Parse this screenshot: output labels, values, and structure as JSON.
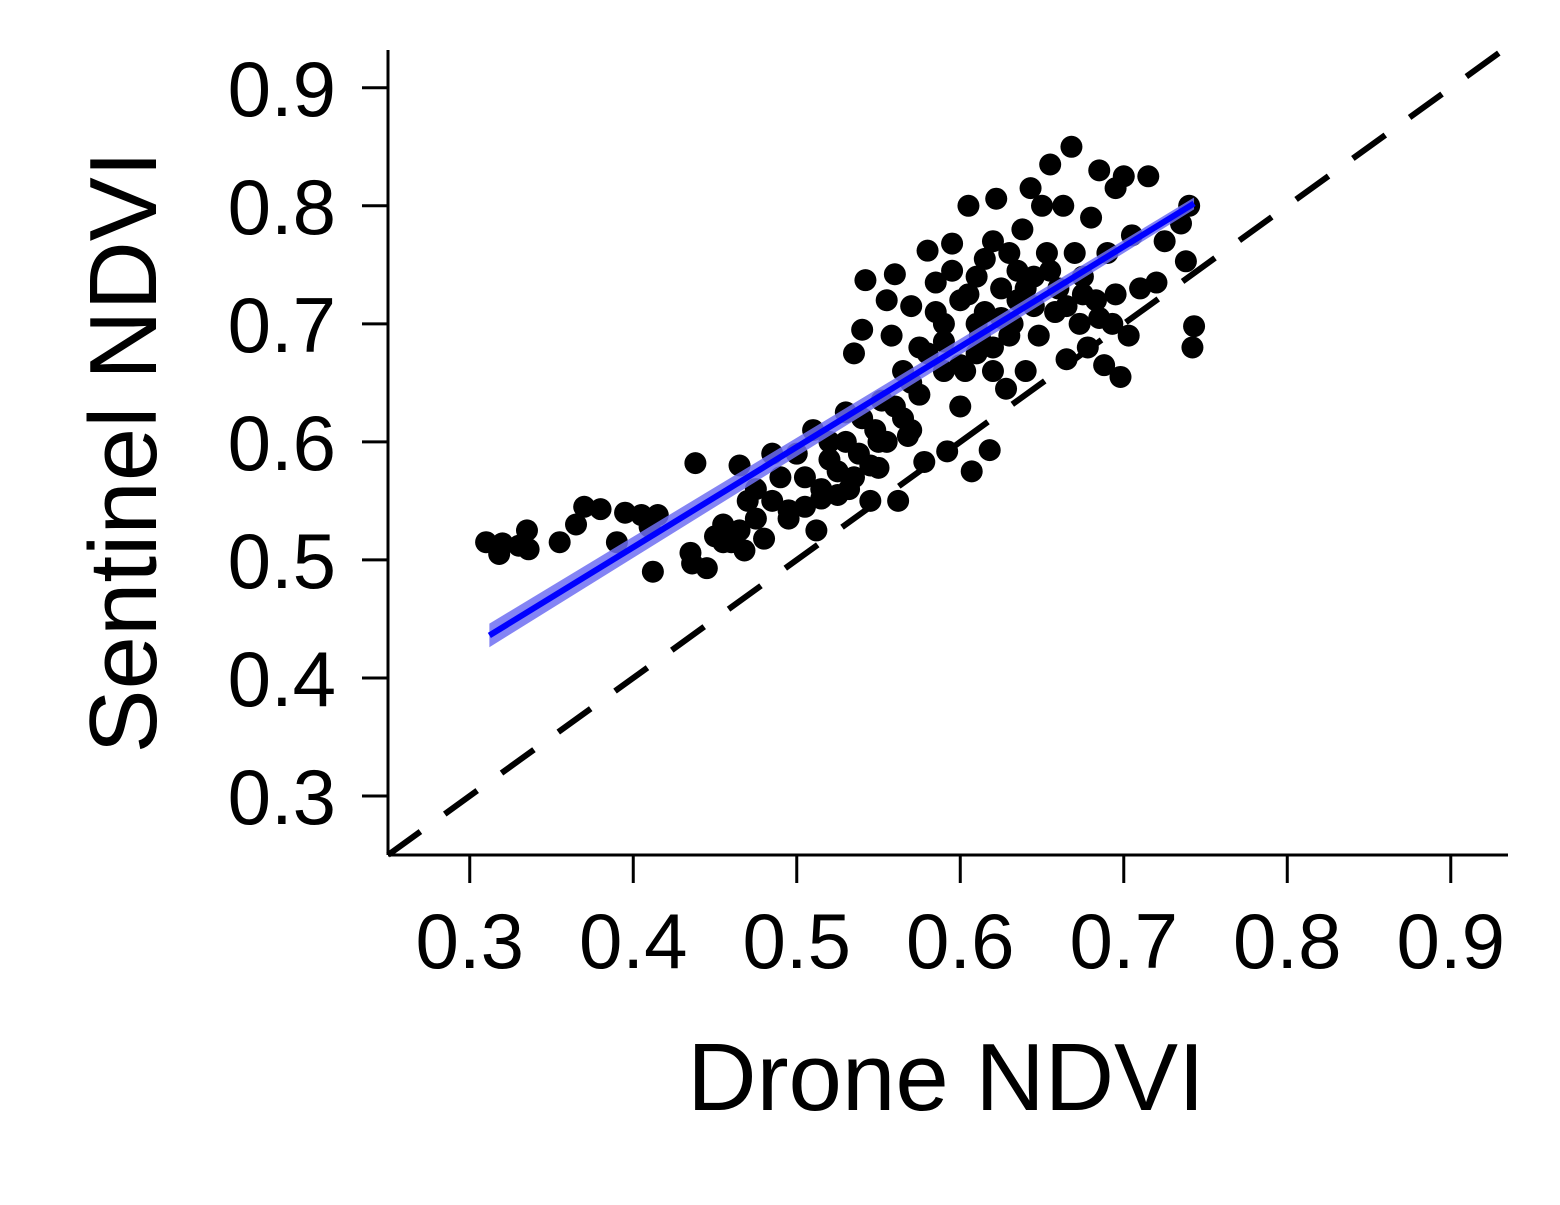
{
  "chart_data": {
    "type": "scatter",
    "title": "",
    "xlabel": "Drone NDVI",
    "ylabel": "Sentinel NDVI",
    "xlim": [
      0.25,
      0.935
    ],
    "ylim": [
      0.25,
      0.932
    ],
    "xticks": [
      0.3,
      0.4,
      0.5,
      0.6,
      0.7,
      0.8,
      0.9
    ],
    "yticks": [
      0.3,
      0.4,
      0.5,
      0.6,
      0.7,
      0.8,
      0.9
    ],
    "xtick_labels": [
      "0.3",
      "0.4",
      "0.5",
      "0.6",
      "0.7",
      "0.8",
      "0.9"
    ],
    "ytick_labels": [
      "0.3",
      "0.4",
      "0.5",
      "0.6",
      "0.7",
      "0.8",
      "0.9"
    ],
    "grid": false,
    "legend": "none",
    "colors": {
      "points": "#000000",
      "fit_line": "#0000ff",
      "fit_band": "#6e6ef2",
      "reference_line": "#000000"
    },
    "reference_line": {
      "type": "1:1",
      "style": "dashed",
      "x": [
        0.25,
        0.935
      ],
      "y": [
        0.25,
        0.935
      ]
    },
    "fit_line": {
      "x": [
        0.312,
        0.743
      ],
      "y": [
        0.436,
        0.802
      ],
      "band_lower": [
        0.426,
        0.797
      ],
      "band_upper": [
        0.446,
        0.807
      ]
    },
    "series": [
      {
        "points": [
          [
            0.31,
            0.515
          ],
          [
            0.318,
            0.505
          ],
          [
            0.32,
            0.514
          ],
          [
            0.33,
            0.512
          ],
          [
            0.335,
            0.525
          ],
          [
            0.336,
            0.509
          ],
          [
            0.355,
            0.515
          ],
          [
            0.365,
            0.53
          ],
          [
            0.37,
            0.545
          ],
          [
            0.38,
            0.543
          ],
          [
            0.39,
            0.515
          ],
          [
            0.395,
            0.54
          ],
          [
            0.405,
            0.538
          ],
          [
            0.41,
            0.528
          ],
          [
            0.412,
            0.49
          ],
          [
            0.415,
            0.538
          ],
          [
            0.435,
            0.506
          ],
          [
            0.436,
            0.497
          ],
          [
            0.438,
            0.582
          ],
          [
            0.445,
            0.493
          ],
          [
            0.45,
            0.52
          ],
          [
            0.455,
            0.53
          ],
          [
            0.46,
            0.515
          ],
          [
            0.465,
            0.58
          ],
          [
            0.468,
            0.508
          ],
          [
            0.47,
            0.55
          ],
          [
            0.475,
            0.56
          ],
          [
            0.48,
            0.518
          ],
          [
            0.485,
            0.59
          ],
          [
            0.49,
            0.57
          ],
          [
            0.495,
            0.542
          ],
          [
            0.5,
            0.59
          ],
          [
            0.505,
            0.57
          ],
          [
            0.51,
            0.61
          ],
          [
            0.512,
            0.525
          ],
          [
            0.515,
            0.552
          ],
          [
            0.52,
            0.6
          ],
          [
            0.525,
            0.575
          ],
          [
            0.53,
            0.625
          ],
          [
            0.532,
            0.56
          ],
          [
            0.535,
            0.675
          ],
          [
            0.538,
            0.59
          ],
          [
            0.54,
            0.695
          ],
          [
            0.542,
            0.737
          ],
          [
            0.545,
            0.55
          ],
          [
            0.548,
            0.61
          ],
          [
            0.55,
            0.578
          ],
          [
            0.552,
            0.635
          ],
          [
            0.555,
            0.72
          ],
          [
            0.558,
            0.69
          ],
          [
            0.56,
            0.742
          ],
          [
            0.562,
            0.55
          ],
          [
            0.565,
            0.66
          ],
          [
            0.568,
            0.605
          ],
          [
            0.57,
            0.715
          ],
          [
            0.575,
            0.68
          ],
          [
            0.578,
            0.583
          ],
          [
            0.58,
            0.762
          ],
          [
            0.585,
            0.735
          ],
          [
            0.59,
            0.7
          ],
          [
            0.592,
            0.592
          ],
          [
            0.595,
            0.768
          ],
          [
            0.6,
            0.63
          ],
          [
            0.603,
            0.66
          ],
          [
            0.605,
            0.8
          ],
          [
            0.607,
            0.575
          ],
          [
            0.61,
            0.74
          ],
          [
            0.612,
            0.69
          ],
          [
            0.615,
            0.71
          ],
          [
            0.618,
            0.593
          ],
          [
            0.62,
            0.77
          ],
          [
            0.622,
            0.806
          ],
          [
            0.625,
            0.73
          ],
          [
            0.628,
            0.645
          ],
          [
            0.63,
            0.76
          ],
          [
            0.632,
            0.7
          ],
          [
            0.635,
            0.72
          ],
          [
            0.638,
            0.78
          ],
          [
            0.64,
            0.66
          ],
          [
            0.643,
            0.815
          ],
          [
            0.645,
            0.74
          ],
          [
            0.648,
            0.69
          ],
          [
            0.65,
            0.8
          ],
          [
            0.653,
            0.76
          ],
          [
            0.655,
            0.835
          ],
          [
            0.658,
            0.71
          ],
          [
            0.66,
            0.73
          ],
          [
            0.663,
            0.8
          ],
          [
            0.665,
            0.67
          ],
          [
            0.668,
            0.85
          ],
          [
            0.67,
            0.76
          ],
          [
            0.673,
            0.7
          ],
          [
            0.675,
            0.74
          ],
          [
            0.678,
            0.68
          ],
          [
            0.68,
            0.79
          ],
          [
            0.683,
            0.72
          ],
          [
            0.685,
            0.83
          ],
          [
            0.688,
            0.665
          ],
          [
            0.69,
            0.76
          ],
          [
            0.693,
            0.7
          ],
          [
            0.695,
            0.815
          ],
          [
            0.698,
            0.655
          ],
          [
            0.7,
            0.825
          ],
          [
            0.703,
            0.69
          ],
          [
            0.705,
            0.775
          ],
          [
            0.71,
            0.73
          ],
          [
            0.715,
            0.825
          ],
          [
            0.72,
            0.735
          ],
          [
            0.725,
            0.77
          ],
          [
            0.735,
            0.785
          ],
          [
            0.738,
            0.753
          ],
          [
            0.74,
            0.8
          ],
          [
            0.742,
            0.68
          ],
          [
            0.743,
            0.698
          ],
          [
            0.6,
            0.72
          ],
          [
            0.61,
            0.7
          ],
          [
            0.62,
            0.68
          ],
          [
            0.63,
            0.69
          ],
          [
            0.64,
            0.73
          ],
          [
            0.59,
            0.66
          ],
          [
            0.575,
            0.64
          ],
          [
            0.565,
            0.62
          ],
          [
            0.555,
            0.6
          ],
          [
            0.545,
            0.58
          ],
          [
            0.535,
            0.57
          ],
          [
            0.525,
            0.555
          ],
          [
            0.515,
            0.56
          ],
          [
            0.505,
            0.545
          ],
          [
            0.495,
            0.535
          ],
          [
            0.485,
            0.55
          ],
          [
            0.475,
            0.535
          ],
          [
            0.465,
            0.525
          ],
          [
            0.455,
            0.515
          ],
          [
            0.585,
            0.71
          ],
          [
            0.595,
            0.745
          ],
          [
            0.605,
            0.725
          ],
          [
            0.615,
            0.755
          ],
          [
            0.625,
            0.705
          ],
          [
            0.635,
            0.745
          ],
          [
            0.645,
            0.715
          ],
          [
            0.655,
            0.745
          ],
          [
            0.665,
            0.715
          ],
          [
            0.675,
            0.725
          ],
          [
            0.685,
            0.705
          ],
          [
            0.695,
            0.725
          ],
          [
            0.57,
            0.65
          ],
          [
            0.58,
            0.675
          ],
          [
            0.59,
            0.685
          ],
          [
            0.6,
            0.665
          ],
          [
            0.61,
            0.675
          ],
          [
            0.62,
            0.66
          ],
          [
            0.55,
            0.6
          ],
          [
            0.56,
            0.63
          ],
          [
            0.57,
            0.61
          ],
          [
            0.54,
            0.62
          ],
          [
            0.53,
            0.6
          ],
          [
            0.52,
            0.585
          ]
        ]
      }
    ]
  }
}
